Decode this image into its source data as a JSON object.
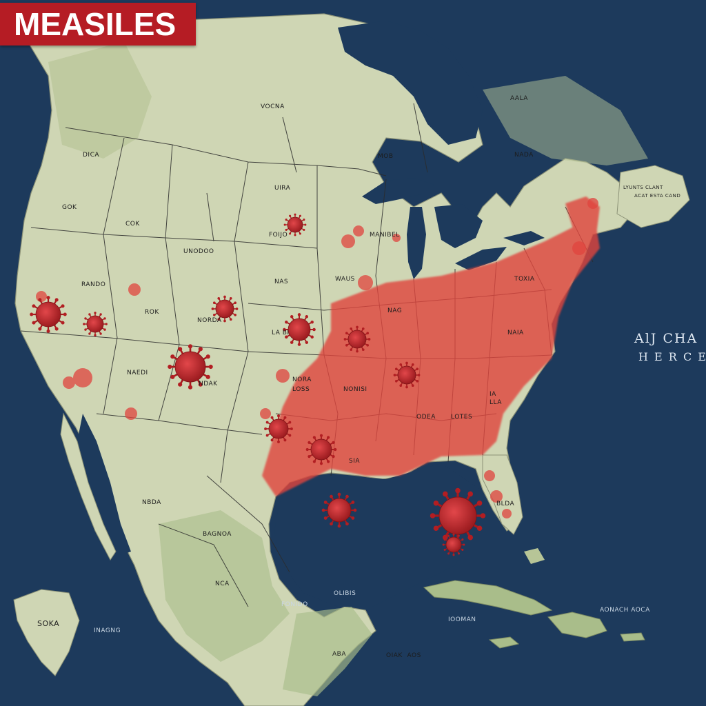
{
  "title": "MEASILES",
  "colors": {
    "ocean": "#1d3a5c",
    "land": "#cfd6b4",
    "land_green": "#a9bd8a",
    "border": "#2b2b2b",
    "outbreak": "#e0443e",
    "virus": "#c0282b",
    "banner": "#b51c24"
  },
  "labels": [
    {
      "id": "label-vocna",
      "text": "VOCNA"
    },
    {
      "id": "label-aala",
      "text": "AALA"
    },
    {
      "id": "label-mob",
      "text": "MOB"
    },
    {
      "id": "label-nada",
      "text": "NADA"
    },
    {
      "id": "label-dica",
      "text": "DICA"
    },
    {
      "id": "label-gok",
      "text": "GOK"
    },
    {
      "id": "label-cok",
      "text": "COK"
    },
    {
      "id": "label-uira",
      "text": "UIRA"
    },
    {
      "id": "label-foijo",
      "text": "FOIJO"
    },
    {
      "id": "label-manibel",
      "text": "MANIBEL"
    },
    {
      "id": "label-undodo",
      "text": "UNODOO"
    },
    {
      "id": "label-nas",
      "text": "NAS"
    },
    {
      "id": "label-waus",
      "text": "WAUS"
    },
    {
      "id": "label-rando",
      "text": "RANDO"
    },
    {
      "id": "label-rok",
      "text": "ROK"
    },
    {
      "id": "label-norda",
      "text": "NORDA"
    },
    {
      "id": "label-la-bi",
      "text": "LA BI"
    },
    {
      "id": "label-nag",
      "text": "NAG"
    },
    {
      "id": "label-toxa",
      "text": "TOXIA"
    },
    {
      "id": "label-naia",
      "text": "NAIA"
    },
    {
      "id": "label-naedi",
      "text": "NAEDI"
    },
    {
      "id": "label-ndak",
      "text": "NDAK"
    },
    {
      "id": "label-nora-loss",
      "text": "NORA\nLOSS"
    },
    {
      "id": "label-nonisi",
      "text": "NONISI"
    },
    {
      "id": "label-ia-lla",
      "text": "IA\nLLA"
    },
    {
      "id": "label-odea",
      "text": "ODEA"
    },
    {
      "id": "label-lotes",
      "text": "LOTES"
    },
    {
      "id": "label-sia",
      "text": "SIA"
    },
    {
      "id": "label-nbda",
      "text": "NBDA"
    },
    {
      "id": "label-bagnoa",
      "text": "BAGNOA"
    },
    {
      "id": "label-nca",
      "text": "NCA"
    },
    {
      "id": "label-fonido",
      "text": "FONIDO"
    },
    {
      "id": "label-olibis",
      "text": "OLIBIS"
    },
    {
      "id": "label-iooman",
      "text": "IOOMAN"
    },
    {
      "id": "label-aonach-aoca",
      "text": "AONACH AOCA"
    },
    {
      "id": "label-soka",
      "text": "SOKA"
    },
    {
      "id": "label-inagng",
      "text": "INAGNG"
    },
    {
      "id": "label-aba",
      "text": "ABA"
    },
    {
      "id": "label-oiak-aos",
      "text": "OIAK  AOS"
    },
    {
      "id": "label-blda",
      "text": "BLDA"
    },
    {
      "id": "label-ocean-1",
      "text": "AlJ CHA"
    },
    {
      "id": "label-ocean-2",
      "text": "H E R C E"
    },
    {
      "id": "label-coast-ne",
      "text": "LYUNTS CLANT"
    },
    {
      "id": "label-coast-ne2",
      "text": "ACAT ESTA CAND"
    }
  ]
}
